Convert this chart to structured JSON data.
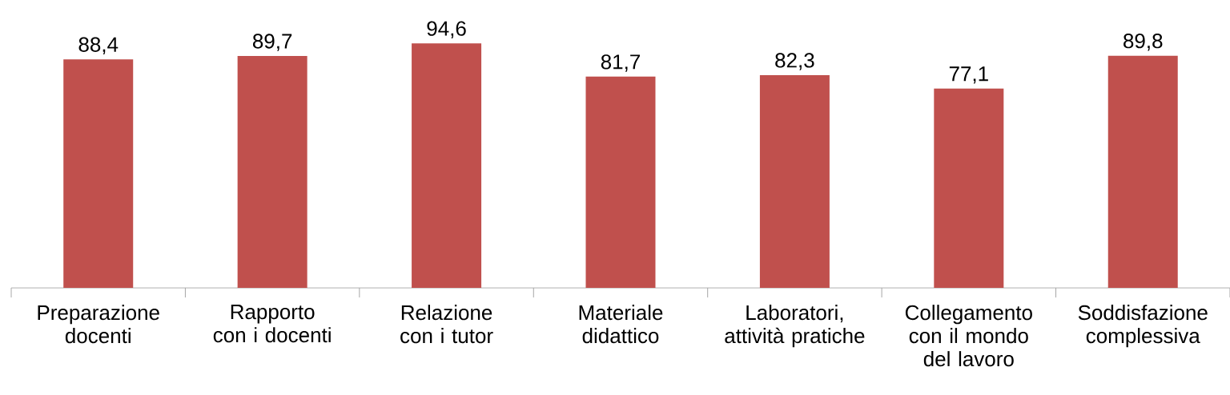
{
  "chart_data": {
    "type": "bar",
    "categories": [
      "Preparazione docenti",
      "Rapporto con i docenti",
      "Relazione con i tutor",
      "Materiale didattico",
      "Laboratori, attività pratiche",
      "Collegamento con il mondo del lavoro",
      "Soddisfazione complessiva"
    ],
    "values": [
      88.4,
      89.7,
      94.6,
      81.7,
      82.3,
      77.1,
      89.8
    ],
    "value_labels": [
      "88,4",
      "89,7",
      "94,6",
      "81,7",
      "82,3",
      "77,1",
      "89,8"
    ],
    "color": "#c0504d"
  }
}
